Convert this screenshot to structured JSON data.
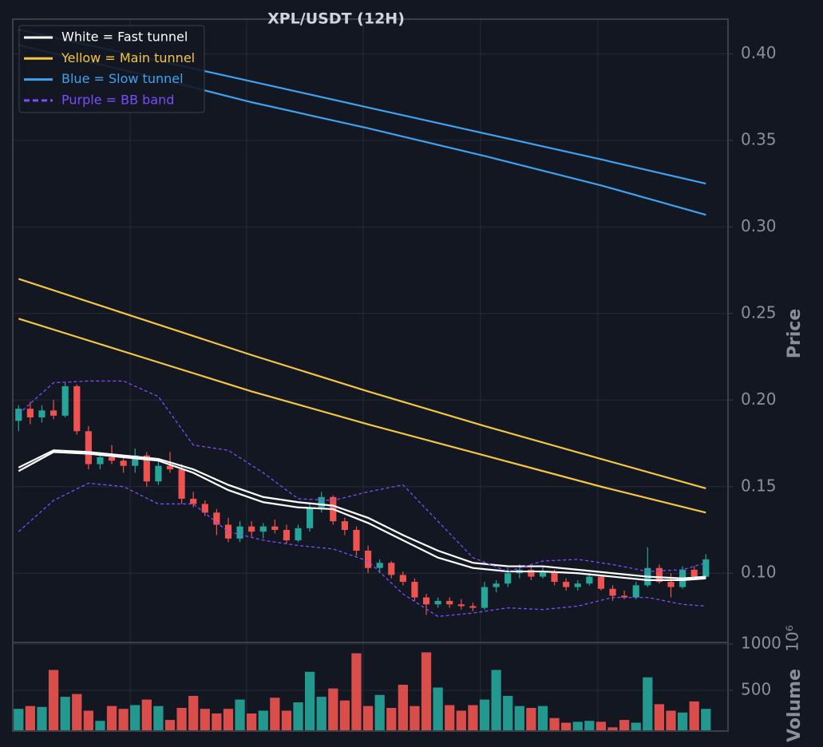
{
  "chart_data": {
    "type": "candlestick",
    "title": "XPL/USDT (12H)",
    "ylabel": "Price",
    "grid": true,
    "legend": "upper left",
    "up_color": "#26a69a",
    "down_color": "#ef5350",
    "xlim": [
      -0.5,
      60.9
    ],
    "ylim": [
      0.06,
      0.42
    ],
    "yticks": [
      {
        "value": 0.1,
        "label": "0.10"
      },
      0.15,
      {
        "value": 0.2,
        "label": "0.20"
      },
      0.25,
      {
        "value": 0.3,
        "label": "0.30"
      },
      0.35,
      {
        "value": 0.4,
        "label": "0.40"
      }
    ],
    "x": [
      0,
      1,
      2,
      3,
      4,
      5,
      6,
      7,
      8,
      9,
      10,
      11,
      12,
      13,
      14,
      15,
      16,
      17,
      18,
      19,
      20,
      21,
      22,
      23,
      24,
      25,
      26,
      27,
      28,
      29,
      30,
      31,
      32,
      33,
      34,
      35,
      36,
      37,
      38,
      39,
      40,
      41,
      42,
      43,
      44,
      45,
      46,
      47,
      48,
      49,
      50,
      51,
      52,
      53,
      54,
      55,
      56,
      57,
      58,
      59
    ],
    "open": [
      0.188,
      0.195,
      0.19,
      0.194,
      0.191,
      0.208,
      0.182,
      0.163,
      0.167,
      0.165,
      0.162,
      0.168,
      0.153,
      0.162,
      0.16,
      0.143,
      0.14,
      0.135,
      0.128,
      0.12,
      0.127,
      0.124,
      0.127,
      0.125,
      0.119,
      0.126,
      0.138,
      0.144,
      0.13,
      0.125,
      0.113,
      0.103,
      0.106,
      0.099,
      0.095,
      0.086,
      0.082,
      0.084,
      0.082,
      0.081,
      0.08,
      0.092,
      0.094,
      0.1,
      0.102,
      0.098,
      0.101,
      0.095,
      0.092,
      0.094,
      0.098,
      0.091,
      0.087,
      0.086,
      0.093,
      0.103,
      0.095,
      0.092,
      0.102,
      0.098
    ],
    "high": [
      0.197,
      0.199,
      0.197,
      0.2,
      0.21,
      0.209,
      0.185,
      0.17,
      0.174,
      0.168,
      0.172,
      0.17,
      0.165,
      0.17,
      0.163,
      0.147,
      0.142,
      0.137,
      0.132,
      0.13,
      0.13,
      0.129,
      0.131,
      0.128,
      0.128,
      0.14,
      0.147,
      0.145,
      0.132,
      0.127,
      0.116,
      0.108,
      0.107,
      0.101,
      0.097,
      0.088,
      0.086,
      0.086,
      0.085,
      0.083,
      0.095,
      0.096,
      0.103,
      0.105,
      0.104,
      0.104,
      0.102,
      0.097,
      0.096,
      0.1,
      0.099,
      0.093,
      0.09,
      0.095,
      0.115,
      0.105,
      0.1,
      0.104,
      0.104,
      0.111
    ],
    "low": [
      0.182,
      0.186,
      0.187,
      0.189,
      0.19,
      0.18,
      0.16,
      0.16,
      0.163,
      0.158,
      0.158,
      0.15,
      0.151,
      0.158,
      0.14,
      0.138,
      0.133,
      0.122,
      0.118,
      0.118,
      0.121,
      0.12,
      0.123,
      0.117,
      0.118,
      0.124,
      0.135,
      0.128,
      0.122,
      0.11,
      0.1,
      0.1,
      0.097,
      0.093,
      0.084,
      0.076,
      0.08,
      0.08,
      0.079,
      0.078,
      0.079,
      0.089,
      0.092,
      0.097,
      0.096,
      0.097,
      0.093,
      0.09,
      0.09,
      0.093,
      0.09,
      0.084,
      0.085,
      0.085,
      0.092,
      0.094,
      0.086,
      0.091,
      0.097,
      0.097
    ],
    "close": [
      0.195,
      0.19,
      0.194,
      0.191,
      0.208,
      0.182,
      0.163,
      0.167,
      0.165,
      0.162,
      0.168,
      0.153,
      0.162,
      0.16,
      0.143,
      0.14,
      0.135,
      0.128,
      0.12,
      0.127,
      0.124,
      0.127,
      0.125,
      0.119,
      0.126,
      0.138,
      0.144,
      0.13,
      0.125,
      0.113,
      0.103,
      0.106,
      0.099,
      0.095,
      0.086,
      0.082,
      0.084,
      0.082,
      0.081,
      0.08,
      0.092,
      0.094,
      0.1,
      0.102,
      0.098,
      0.101,
      0.095,
      0.092,
      0.094,
      0.098,
      0.091,
      0.087,
      0.086,
      0.093,
      0.103,
      0.095,
      0.092,
      0.102,
      0.098,
      0.108
    ],
    "overlays": [
      {
        "name": "White = Fast tunnel",
        "color": "#ffffff",
        "dashed": false,
        "lines": [
          {
            "x": [
              0,
              3,
              6,
              9,
              12,
              15,
              18,
              21,
              24,
              27,
              30,
              33,
              36,
              39,
              42,
              45,
              48,
              51,
              54,
              57,
              59
            ],
            "values": [
              0.161,
              0.171,
              0.17,
              0.168,
              0.166,
              0.16,
              0.151,
              0.144,
              0.141,
              0.139,
              0.132,
              0.122,
              0.113,
              0.106,
              0.104,
              0.104,
              0.102,
              0.1,
              0.098,
              0.097,
              0.098
            ]
          },
          {
            "x": [
              0,
              3,
              6,
              9,
              12,
              15,
              18,
              21,
              24,
              27,
              30,
              33,
              36,
              39,
              42,
              45,
              48,
              51,
              54,
              57,
              59
            ],
            "values": [
              0.159,
              0.17,
              0.169,
              0.167,
              0.165,
              0.158,
              0.148,
              0.141,
              0.138,
              0.137,
              0.129,
              0.119,
              0.109,
              0.103,
              0.101,
              0.101,
              0.1,
              0.098,
              0.096,
              0.096,
              0.097
            ]
          }
        ]
      },
      {
        "name": "Yellow = Main tunnel",
        "color": "#f5c542",
        "dashed": false,
        "lines": [
          {
            "x": [
              0,
              10,
              20,
              30,
              40,
              50,
              59
            ],
            "values": [
              0.27,
              0.248,
              0.226,
              0.205,
              0.185,
              0.166,
              0.149
            ]
          },
          {
            "x": [
              0,
              10,
              20,
              30,
              40,
              50,
              59
            ],
            "values": [
              0.247,
              0.226,
              0.205,
              0.186,
              0.168,
              0.15,
              0.135
            ]
          }
        ]
      },
      {
        "name": "Blue = Slow tunnel",
        "color": "#3fa2f0",
        "dashed": false,
        "lines": [
          {
            "x": [
              0,
              10,
              20,
              30,
              40,
              50,
              59
            ],
            "values": [
              0.414,
              0.399,
              0.384,
              0.369,
              0.354,
              0.339,
              0.325
            ]
          },
          {
            "x": [
              0,
              10,
              20,
              30,
              40,
              50,
              59
            ],
            "values": [
              0.405,
              0.389,
              0.372,
              0.357,
              0.341,
              0.324,
              0.307
            ]
          }
        ]
      },
      {
        "name": "Purple = BB band",
        "color": "#7c4dff",
        "dashed": true,
        "lines": [
          {
            "x": [
              0,
              3,
              6,
              9,
              12,
              15,
              18,
              21,
              24,
              27,
              30,
              33,
              36,
              39,
              42,
              45,
              48,
              51,
              54,
              57,
              59
            ],
            "values": [
              0.192,
              0.21,
              0.211,
              0.211,
              0.202,
              0.174,
              0.171,
              0.158,
              0.143,
              0.142,
              0.147,
              0.151,
              0.13,
              0.109,
              0.101,
              0.107,
              0.108,
              0.105,
              0.101,
              0.102,
              0.106
            ]
          },
          {
            "x": [
              0,
              3,
              6,
              9,
              12,
              15,
              18,
              21,
              24,
              27,
              30,
              33,
              36,
              39,
              42,
              45,
              48,
              51,
              54,
              57,
              59
            ],
            "values": [
              0.124,
              0.142,
              0.152,
              0.15,
              0.14,
              0.14,
              0.124,
              0.119,
              0.116,
              0.114,
              0.107,
              0.088,
              0.075,
              0.077,
              0.08,
              0.079,
              0.081,
              0.086,
              0.086,
              0.082,
              0.081
            ]
          }
        ]
      }
    ],
    "volume": {
      "label": "Volume",
      "offset": "10⁶",
      "ylim": [
        60,
        1017
      ],
      "yticks": [
        500,
        1000
      ],
      "values": [
        300,
        330,
        320,
        720,
        430,
        460,
        280,
        170,
        330,
        300,
        340,
        400,
        330,
        180,
        310,
        440,
        300,
        250,
        300,
        400,
        250,
        280,
        420,
        280,
        370,
        700,
        430,
        520,
        390,
        900,
        330,
        450,
        310,
        560,
        330,
        910,
        530,
        340,
        280,
        340,
        400,
        720,
        440,
        330,
        310,
        330,
        200,
        150,
        160,
        170,
        160,
        100,
        180,
        150,
        640,
        350,
        280,
        260,
        380,
        300
      ]
    }
  }
}
